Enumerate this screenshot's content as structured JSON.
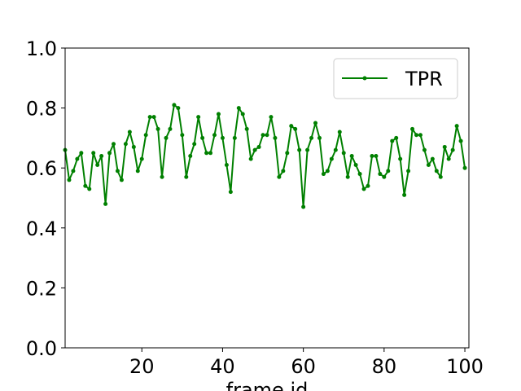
{
  "chart_data": {
    "type": "line",
    "title": "",
    "xlabel": "frame id",
    "ylabel": "",
    "xlim": [
      1,
      101
    ],
    "ylim": [
      0.0,
      1.0
    ],
    "xticks": [
      20,
      40,
      60,
      80,
      100
    ],
    "xtick_labels": [
      "20",
      "40",
      "60",
      "80",
      "100"
    ],
    "yticks": [
      0.0,
      0.2,
      0.4,
      0.6,
      0.8,
      1.0
    ],
    "ytick_labels": [
      "0.0",
      "0.2",
      "0.4",
      "0.6",
      "0.8",
      "1.0"
    ],
    "grid": false,
    "legend": {
      "position": "upper-right"
    },
    "series": [
      {
        "name": "TPR",
        "color": "#008000",
        "marker": "circle",
        "x": [
          1,
          2,
          3,
          4,
          5,
          6,
          7,
          8,
          9,
          10,
          11,
          12,
          13,
          14,
          15,
          16,
          17,
          18,
          19,
          20,
          21,
          22,
          23,
          24,
          25,
          26,
          27,
          28,
          29,
          30,
          31,
          32,
          33,
          34,
          35,
          36,
          37,
          38,
          39,
          40,
          41,
          42,
          43,
          44,
          45,
          46,
          47,
          48,
          49,
          50,
          51,
          52,
          53,
          54,
          55,
          56,
          57,
          58,
          59,
          60,
          61,
          62,
          63,
          64,
          65,
          66,
          67,
          68,
          69,
          70,
          71,
          72,
          73,
          74,
          75,
          76,
          77,
          78,
          79,
          80,
          81,
          82,
          83,
          84,
          85,
          86,
          87,
          88,
          89,
          90,
          91,
          92,
          93,
          94,
          95,
          96,
          97,
          98,
          99,
          100
        ],
        "values": [
          0.66,
          0.56,
          0.59,
          0.63,
          0.65,
          0.54,
          0.53,
          0.65,
          0.61,
          0.64,
          0.48,
          0.65,
          0.68,
          0.59,
          0.56,
          0.68,
          0.72,
          0.67,
          0.59,
          0.63,
          0.71,
          0.77,
          0.77,
          0.73,
          0.57,
          0.7,
          0.73,
          0.81,
          0.8,
          0.71,
          0.57,
          0.64,
          0.68,
          0.77,
          0.7,
          0.65,
          0.65,
          0.71,
          0.78,
          0.7,
          0.61,
          0.52,
          0.7,
          0.8,
          0.78,
          0.73,
          0.63,
          0.66,
          0.67,
          0.71,
          0.71,
          0.77,
          0.7,
          0.57,
          0.59,
          0.65,
          0.74,
          0.73,
          0.66,
          0.47,
          0.66,
          0.7,
          0.75,
          0.7,
          0.58,
          0.59,
          0.63,
          0.66,
          0.72,
          0.65,
          0.57,
          0.64,
          0.61,
          0.58,
          0.53,
          0.54,
          0.64,
          0.64,
          0.58,
          0.57,
          0.59,
          0.69,
          0.7,
          0.63,
          0.51,
          0.59,
          0.73,
          0.71,
          0.71,
          0.66,
          0.61,
          0.63,
          0.59,
          0.57,
          0.67,
          0.63,
          0.66,
          0.74,
          0.69,
          0.6
        ]
      }
    ]
  }
}
